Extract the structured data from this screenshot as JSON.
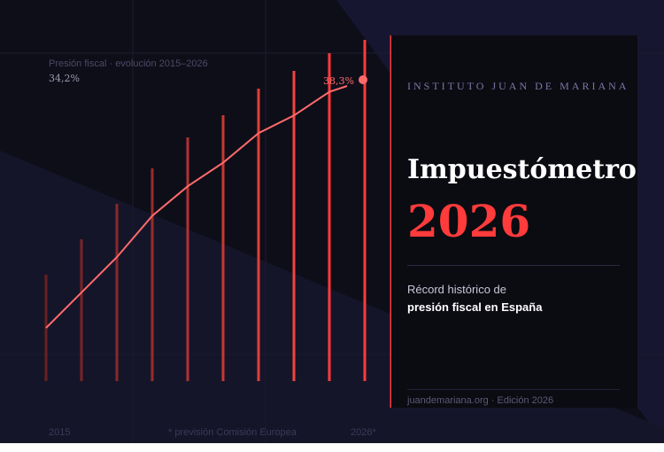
{
  "chart": {
    "caption": "Presión fiscal · evolución 2015–2026",
    "start_label": "34,2%",
    "end_label": "38,3%",
    "x_start": "2015",
    "x_end": "2026*",
    "note": "* previsión Comisión Europea"
  },
  "panel": {
    "institute": "INSTITUTO JUAN DE MARIANA",
    "title": "Impuestómetro",
    "year": "2026",
    "subtitle_line1": "Récord histórico de",
    "subtitle_line2": "presión fiscal en España",
    "footer": "juandemariana.org · Edición 2026"
  },
  "colors": {
    "accent": "#ff3b3b",
    "line": "#ff6b6b",
    "background": "#0e0e19"
  },
  "chart_data": {
    "type": "line",
    "ylabel": "",
    "xlabel": "",
    "x_ticks": [
      "2015",
      "2026*"
    ],
    "values": [
      34.2,
      34.8,
      35.4,
      36.1,
      36.6,
      37.0,
      37.5,
      37.8,
      38.2,
      38.3
    ],
    "labels": {
      "first": "34,2%",
      "last": "38,3%"
    }
  }
}
